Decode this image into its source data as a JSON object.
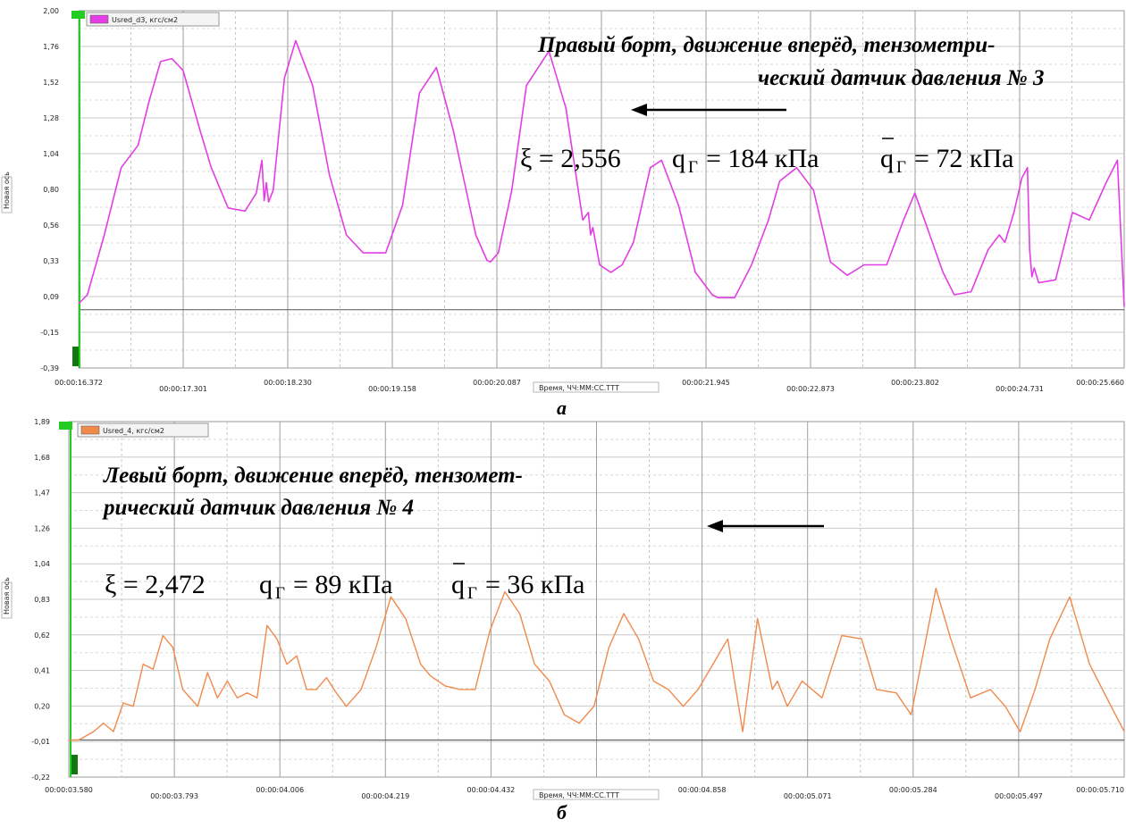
{
  "chart_data": [
    {
      "type": "line",
      "panel_label": "а",
      "legend": "Usred_d3, кгс/см2",
      "ylabel": "Новая ось",
      "xlabel": "Время, ЧЧ:ММ:СС.ТТТ",
      "y_ticks": [
        "2,00",
        "1,76",
        "1,52",
        "1,28",
        "1,04",
        "0,80",
        "0,56",
        "0,33",
        "0,09",
        "-0,15",
        "-0,39"
      ],
      "x_ticks": [
        "00:00:16.372",
        "00:00:17.301",
        "00:00:18.230",
        "00:00:19.158",
        "00:00:20.087",
        "00:00:21.016",
        "00:00:21.945",
        "00:00:22.873",
        "00:00:23.802",
        "00:00:24.731",
        "00:00:25.660"
      ],
      "ylim": [
        -0.39,
        2.0
      ],
      "xlim": [
        16.372,
        25.66
      ],
      "color": "#e23ee3",
      "annotation": [
        "Правый борт, движение вперёд, тензометри-",
        "ческий датчик давления № 3"
      ],
      "formula": {
        "xi": "ξ = 2,556",
        "q_value": "= 184 кПа",
        "qbar_value": "= 72 кПа",
        "q_symbol": "q",
        "q_sub": "Г"
      },
      "series": [
        {
          "x": [
            16.372,
            16.45,
            16.6,
            16.75,
            16.9,
            17.0,
            17.1,
            17.2,
            17.3,
            17.45,
            17.55,
            17.7,
            17.85,
            17.95,
            18.0,
            18.02,
            18.04,
            18.06,
            18.1,
            18.2,
            18.3,
            18.45,
            18.6,
            18.75,
            18.9,
            19.1,
            19.25,
            19.4,
            19.55,
            19.7,
            19.9,
            20.0,
            20.03,
            20.1,
            20.22,
            20.35,
            20.55,
            20.7,
            20.85,
            20.9,
            20.92,
            20.94,
            21.0,
            21.1,
            21.2,
            21.3,
            21.45,
            21.55,
            21.7,
            21.85,
            22.0,
            22.05,
            22.2,
            22.35,
            22.5,
            22.6,
            22.75,
            22.9,
            23.05,
            23.2,
            23.35,
            23.55,
            23.7,
            23.8,
            23.9,
            24.05,
            24.15,
            24.3,
            24.45,
            24.55,
            24.6,
            24.68,
            24.75,
            24.8,
            24.82,
            24.84,
            24.86,
            24.9,
            25.05,
            25.2,
            25.35,
            25.5,
            25.6,
            25.66
          ],
          "y": [
            0.04,
            0.1,
            0.5,
            0.95,
            1.1,
            1.4,
            1.66,
            1.68,
            1.6,
            1.2,
            0.95,
            0.68,
            0.66,
            0.78,
            1.0,
            0.73,
            0.85,
            0.72,
            0.8,
            1.55,
            1.8,
            1.5,
            0.9,
            0.5,
            0.38,
            0.38,
            0.7,
            1.45,
            1.62,
            1.2,
            0.5,
            0.33,
            0.32,
            0.38,
            0.8,
            1.5,
            1.73,
            1.35,
            0.6,
            0.65,
            0.5,
            0.55,
            0.3,
            0.25,
            0.3,
            0.45,
            0.95,
            1.0,
            0.7,
            0.25,
            0.1,
            0.08,
            0.08,
            0.3,
            0.6,
            0.86,
            0.95,
            0.8,
            0.32,
            0.23,
            0.3,
            0.3,
            0.6,
            0.78,
            0.57,
            0.25,
            0.1,
            0.12,
            0.4,
            0.5,
            0.45,
            0.65,
            0.88,
            0.95,
            0.4,
            0.22,
            0.28,
            0.18,
            0.2,
            0.65,
            0.6,
            0.85,
            1.0,
            0.02
          ]
        }
      ]
    },
    {
      "type": "line",
      "panel_label": "б",
      "legend": "Usred_4, кгс/см2",
      "ylabel": "Новая ось",
      "xlabel": "Время, ЧЧ:ММ:СС.ТТТ",
      "y_ticks": [
        "1,89",
        "1,68",
        "1,47",
        "1,26",
        "1,04",
        "0,83",
        "0,62",
        "0,41",
        "0,20",
        "-0,01",
        "-0,22"
      ],
      "x_ticks": [
        "00:00:03.580",
        "00:00:03.793",
        "00:00:04.006",
        "00:00:04.219",
        "00:00:04.432",
        "00:00:04.645",
        "00:00:04.858",
        "00:00:05.071",
        "00:00:05.284",
        "00:00:05.497",
        "00:00:05.710"
      ],
      "ylim": [
        -0.22,
        1.89
      ],
      "xlim": [
        3.58,
        5.71
      ],
      "color": "#f08a4b",
      "annotation": [
        "Левый борт, движение вперёд, тензомет-",
        "рический датчик давления № 4"
      ],
      "formula": {
        "xi": "ξ = 2,472",
        "q_value": "= 89 кПа",
        "qbar_value": "= 36 кПа",
        "q_symbol": "q",
        "q_sub": "Г"
      },
      "series": [
        {
          "x": [
            3.58,
            3.6,
            3.63,
            3.65,
            3.67,
            3.69,
            3.71,
            3.73,
            3.75,
            3.77,
            3.79,
            3.81,
            3.84,
            3.86,
            3.88,
            3.9,
            3.92,
            3.94,
            3.96,
            3.98,
            4.0,
            4.02,
            4.04,
            4.06,
            4.08,
            4.1,
            4.12,
            4.14,
            4.17,
            4.2,
            4.23,
            4.26,
            4.29,
            4.31,
            4.34,
            4.37,
            4.4,
            4.43,
            4.46,
            4.49,
            4.52,
            4.55,
            4.58,
            4.61,
            4.64,
            4.67,
            4.7,
            4.73,
            4.76,
            4.79,
            4.82,
            4.85,
            4.88,
            4.91,
            4.94,
            4.97,
            5.0,
            5.01,
            5.03,
            5.06,
            5.1,
            5.14,
            5.18,
            5.21,
            5.25,
            5.28,
            5.3,
            5.33,
            5.36,
            5.4,
            5.44,
            5.47,
            5.5,
            5.53,
            5.56,
            5.6,
            5.64,
            5.68,
            5.71
          ],
          "y": [
            0.0,
            0.0,
            0.05,
            0.1,
            0.05,
            0.22,
            0.2,
            0.45,
            0.42,
            0.62,
            0.55,
            0.3,
            0.2,
            0.4,
            0.25,
            0.35,
            0.25,
            0.28,
            0.25,
            0.68,
            0.6,
            0.45,
            0.5,
            0.3,
            0.3,
            0.37,
            0.28,
            0.2,
            0.3,
            0.55,
            0.85,
            0.72,
            0.45,
            0.38,
            0.32,
            0.3,
            0.3,
            0.65,
            0.88,
            0.75,
            0.45,
            0.35,
            0.15,
            0.1,
            0.2,
            0.55,
            0.75,
            0.6,
            0.35,
            0.3,
            0.2,
            0.3,
            0.45,
            0.6,
            0.05,
            0.72,
            0.3,
            0.35,
            0.2,
            0.35,
            0.25,
            0.62,
            0.6,
            0.3,
            0.28,
            0.15,
            0.45,
            0.9,
            0.6,
            0.25,
            0.3,
            0.2,
            0.05,
            0.3,
            0.6,
            0.85,
            0.45,
            0.22,
            0.05
          ]
        }
      ]
    }
  ]
}
